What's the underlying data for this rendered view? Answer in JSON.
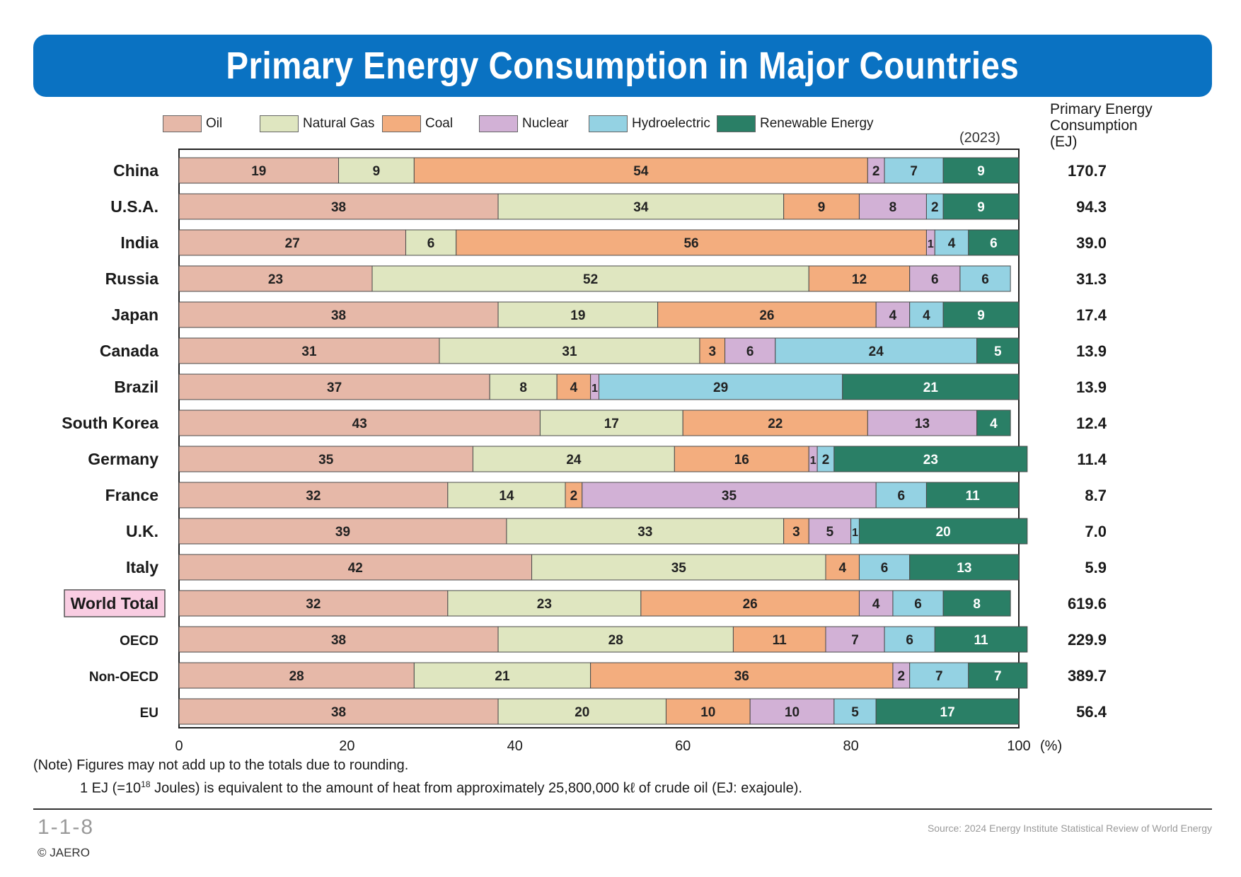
{
  "title": "Primary Energy Consumption in Major Countries",
  "year_label": "(2023)",
  "total_header": [
    "Primary Energy",
    "Consumption",
    " (EJ)"
  ],
  "legend": [
    {
      "label": "Oil",
      "color": "#e6b8a8"
    },
    {
      "label": "Natural Gas",
      "color": "#dfe6c0"
    },
    {
      "label": "Coal",
      "color": "#f3ad7e"
    },
    {
      "label": "Nuclear",
      "color": "#d2b1d6"
    },
    {
      "label": "Hydroelectric",
      "color": "#94d2e3"
    },
    {
      "label": "Renewable Energy",
      "color": "#2a7f66"
    }
  ],
  "chart_data": {
    "type": "bar",
    "orientation": "horizontal",
    "stacked": true,
    "x_unit": "(%)",
    "xlim": [
      0,
      100
    ],
    "x_ticks": [
      0,
      20,
      40,
      60,
      80,
      100
    ],
    "x_tick_labels": [
      "0",
      "20",
      "40",
      "60",
      "80",
      "100"
    ],
    "categories": [
      "China",
      "U.S.A.",
      "India",
      "Russia",
      "Japan",
      "Canada",
      "Brazil",
      "South Korea",
      "Germany",
      "France",
      "U.K.",
      "Italy",
      "World Total",
      "OECD",
      "Non-OECD",
      "EU"
    ],
    "highlighted_category": "World Total",
    "series": [
      {
        "name": "Oil",
        "color": "#e6b8a8",
        "values": [
          19,
          38,
          27,
          23,
          38,
          31,
          37,
          43,
          35,
          32,
          39,
          42,
          32,
          38,
          28,
          38
        ]
      },
      {
        "name": "Natural Gas",
        "color": "#dfe6c0",
        "values": [
          9,
          34,
          6,
          52,
          19,
          31,
          8,
          17,
          24,
          14,
          33,
          35,
          23,
          28,
          21,
          20
        ]
      },
      {
        "name": "Coal",
        "color": "#f3ad7e",
        "values": [
          54,
          9,
          56,
          12,
          26,
          3,
          4,
          22,
          16,
          2,
          3,
          4,
          26,
          11,
          36,
          10
        ]
      },
      {
        "name": "Nuclear",
        "color": "#d2b1d6",
        "values": [
          2,
          8,
          1,
          6,
          4,
          6,
          1,
          13,
          1,
          35,
          5,
          0,
          4,
          7,
          2,
          10
        ]
      },
      {
        "name": "Hydroelectric",
        "color": "#94d2e3",
        "values": [
          7,
          2,
          4,
          6,
          4,
          24,
          29,
          0,
          2,
          6,
          1,
          6,
          6,
          6,
          7,
          5
        ]
      },
      {
        "name": "Renewable Energy",
        "color": "#2a7f66",
        "values": [
          9,
          9,
          6,
          0,
          9,
          5,
          21,
          4,
          23,
          11,
          20,
          13,
          8,
          11,
          7,
          17
        ]
      }
    ],
    "totals_ej": [
      "170.7",
      "94.3",
      "39.0",
      "31.3",
      "17.4",
      "13.9",
      "13.9",
      "12.4",
      "11.4",
      "8.7",
      "7.0",
      "5.9",
      "619.6",
      "229.9",
      "389.7",
      "56.4"
    ]
  },
  "notes": {
    "note1": "(Note) Figures may not add up to the totals due to rounding.",
    "note2_a": "1 EJ (=10",
    "note2_sup": "18",
    "note2_b": " Joules) is equivalent to the amount of heat from approximately 25,800,000 kℓ  of crude oil (EJ: exajoule)."
  },
  "footer": {
    "page_number": "1-1-8",
    "copyright": "© JAERO",
    "source": "Source: 2024 Energy Institute Statistical Review of World Energy"
  }
}
